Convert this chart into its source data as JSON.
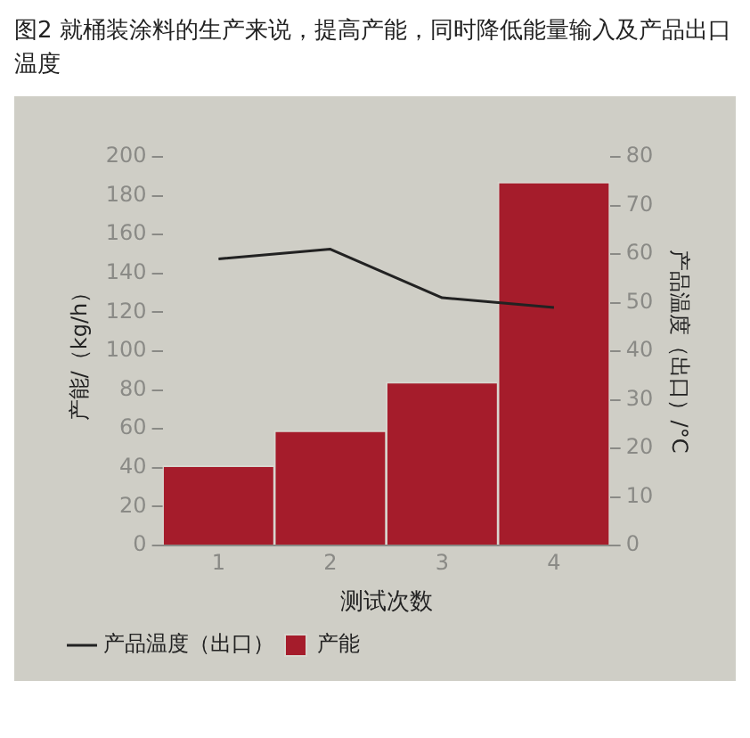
{
  "chart_data": {
    "type": "bar",
    "title": "图2  就桶装涂料的生产来说，提高产能，同时降低能量输入及产品出口温度",
    "xlabel": "测试次数",
    "ylabel": "产能/（kg/h）",
    "y2label": "产品温度（出口）/°C",
    "categories": [
      "1",
      "2",
      "3",
      "4"
    ],
    "series": [
      {
        "name": "产品温度（出口）",
        "type": "line",
        "axis": "y2",
        "color": "#222222",
        "values": [
          59,
          61,
          51,
          49
        ]
      },
      {
        "name": "产能",
        "color": "#a51c2b",
        "values": [
          41,
          59,
          84,
          187
        ]
      }
    ],
    "ylim": [
      0,
      200
    ],
    "yticks": [
      0,
      20,
      40,
      60,
      80,
      100,
      120,
      140,
      160,
      180,
      200
    ],
    "y2lim": [
      0,
      80
    ],
    "y2ticks": [
      0,
      10,
      20,
      30,
      40,
      50,
      60,
      70,
      80
    ],
    "grid": false,
    "legend": "bottom",
    "marker": "none",
    "line_style": "solid"
  }
}
